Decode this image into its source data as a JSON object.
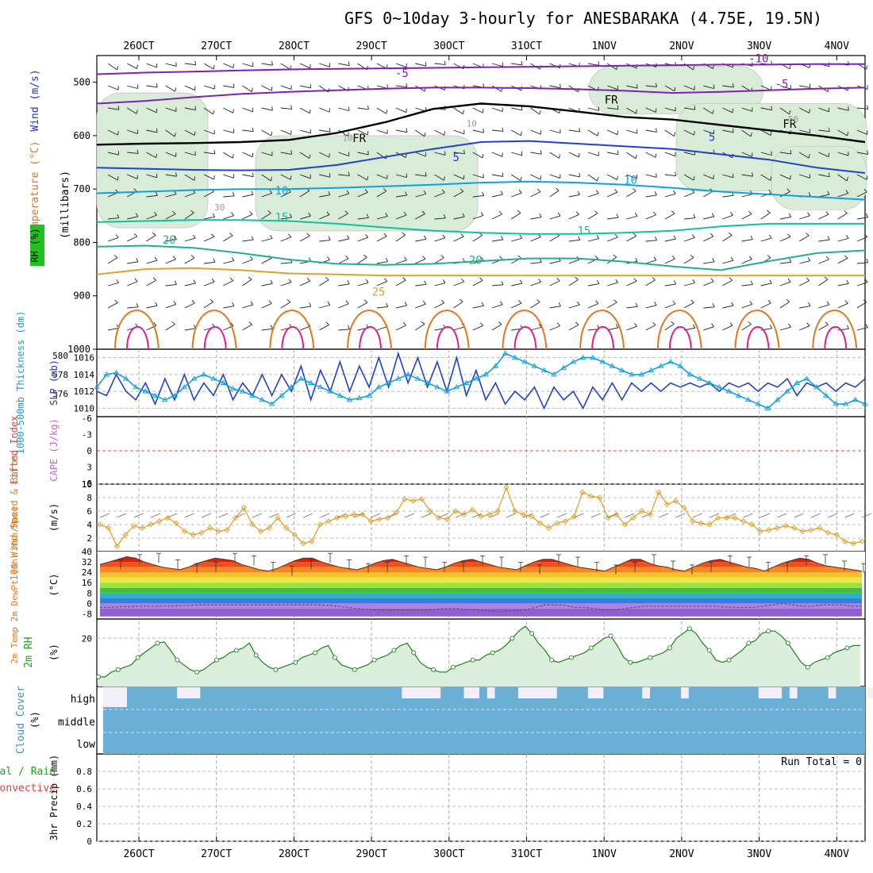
{
  "title": "GFS 0~10day 3-hourly for ANESBARAKA (4.75E, 19.5N)",
  "date_ticks": [
    "26OCT",
    "27OCT",
    "28OCT",
    "29OCT",
    "30OCT",
    "31OCT",
    "1NOV",
    "2NOV",
    "3NOV",
    "4NOV"
  ],
  "colors": {
    "purple": "#8020b0",
    "black": "#000000",
    "blue": "#2040d0",
    "lightblue": "#10a0e0",
    "teal": "#10c0a0",
    "tealgreen": "#20b090",
    "orange": "#e0a030",
    "darkorange": "#e07820",
    "magenta": "#e0208a",
    "rh_fill": "#d8ecd8",
    "cloud": "#6baed6",
    "cloud_bg": "#f3eef8"
  },
  "chart_data": [
    {
      "type": "line",
      "panel": "upper-air",
      "labels": {
        "wind": "Wind (m/s)",
        "temperature": "Temperature (°C)",
        "rh": "RH (%)",
        "yunit": "(millibars)"
      },
      "ylim": [
        1000,
        450
      ],
      "y_ticks": [
        500,
        600,
        700,
        800,
        900,
        1000
      ],
      "isotherm_labels": [
        {
          "text": "-10",
          "color": "purple",
          "x_day": 7.5,
          "p": 463
        },
        {
          "text": "-5",
          "color": "purple",
          "x_day": 2.9,
          "p": 490
        },
        {
          "text": "-5",
          "color": "purple",
          "x_day": 7.8,
          "p": 510
        },
        {
          "text": "FR",
          "color": "black",
          "x_day": 2.35,
          "p": 612
        },
        {
          "text": "FR",
          "color": "black",
          "x_day": 5.6,
          "p": 540
        },
        {
          "text": "FR",
          "color": "black",
          "x_day": 7.9,
          "p": 585
        },
        {
          "text": "5",
          "color": "blue",
          "x_day": 3.6,
          "p": 648
        },
        {
          "text": "5",
          "color": "blue",
          "x_day": 6.9,
          "p": 610
        },
        {
          "text": "10",
          "color": "lightblue",
          "x_day": 1.35,
          "p": 710
        },
        {
          "text": "10",
          "color": "lightblue",
          "x_day": 5.85,
          "p": 690
        },
        {
          "text": "15",
          "color": "teal",
          "x_day": 1.35,
          "p": 760
        },
        {
          "text": "15",
          "color": "teal",
          "x_day": 5.25,
          "p": 785
        },
        {
          "text": "20",
          "color": "tealgreen",
          "x_day": -0.1,
          "p": 802
        },
        {
          "text": "20",
          "color": "tealgreen",
          "x_day": 3.85,
          "p": 840
        },
        {
          "text": "25",
          "color": "orange",
          "x_day": 2.6,
          "p": 900
        },
        {
          "text": "10",
          "color": "gray",
          "x_day": 3.8,
          "p": 583
        },
        {
          "text": "10",
          "color": "gray",
          "x_day": 2.2,
          "p": 610
        },
        {
          "text": "30",
          "color": "gray",
          "x_day": 0.55,
          "p": 740
        },
        {
          "text": "50",
          "color": "gray",
          "x_day": 7.95,
          "p": 575
        }
      ],
      "series": [
        {
          "name": "-10",
          "color": "purple",
          "values": [
            485,
            482,
            480,
            478,
            476,
            475,
            474,
            473,
            472,
            471,
            470,
            469,
            468,
            467,
            467,
            466,
            466
          ]
        },
        {
          "name": "-5",
          "color": "purple",
          "values": [
            540,
            535,
            528,
            522,
            518,
            515,
            512,
            510,
            510,
            511,
            513,
            516,
            520,
            518,
            515,
            512,
            510
          ]
        },
        {
          "name": "FR",
          "color": "black",
          "values": [
            617,
            615,
            614,
            612,
            608,
            595,
            575,
            550,
            540,
            545,
            555,
            565,
            570,
            580,
            590,
            600,
            612
          ]
        },
        {
          "name": "5",
          "color": "blue",
          "values": [
            660,
            662,
            664,
            665,
            664,
            655,
            640,
            625,
            612,
            610,
            615,
            620,
            625,
            635,
            645,
            660,
            670
          ]
        },
        {
          "name": "10",
          "color": "lightblue",
          "values": [
            708,
            705,
            702,
            700,
            700,
            698,
            695,
            692,
            688,
            686,
            688,
            692,
            698,
            705,
            710,
            715,
            720
          ]
        },
        {
          "name": "15",
          "color": "teal",
          "values": [
            762,
            760,
            758,
            758,
            760,
            765,
            772,
            778,
            782,
            784,
            784,
            782,
            778,
            770,
            765,
            765,
            765
          ]
        },
        {
          "name": "20",
          "color": "tealgreen",
          "values": [
            808,
            806,
            810,
            820,
            832,
            840,
            842,
            840,
            835,
            830,
            830,
            836,
            845,
            852,
            835,
            820,
            815
          ]
        },
        {
          "name": "25",
          "color": "orange",
          "values": [
            860,
            850,
            848,
            852,
            858,
            860,
            862,
            862,
            862,
            862,
            862,
            862,
            862,
            862,
            862,
            862,
            862
          ]
        }
      ]
    },
    {
      "type": "line",
      "panel": "sfc-pressure",
      "labels": {
        "left": "1000-500mb Thickness (dm)",
        "right": "SLP (mb)"
      },
      "ylim_right": [
        1009,
        1017
      ],
      "y_ticks_left": [
        576,
        578,
        580
      ],
      "y_ticks_right": [
        1010,
        1012,
        1014,
        1016
      ],
      "series": [
        {
          "name": "SLP",
          "color": "blue",
          "values": [
            1012.0,
            1011.5,
            1014,
            1012,
            1011,
            1013,
            1010.5,
            1013.5,
            1011,
            1014,
            1011,
            1013,
            1011.5,
            1014,
            1011,
            1013,
            1011.5,
            1014,
            1011.5,
            1014,
            1012,
            1015,
            1011,
            1014.5,
            1012,
            1015.5,
            1012,
            1015,
            1012.5,
            1016,
            1012.5,
            1016.5,
            1013,
            1016,
            1012.5,
            1015.5,
            1012,
            1016,
            1011.5,
            1014.5,
            1011,
            1013,
            1010.5,
            1012,
            1011,
            1012.5,
            1010,
            1012.5,
            1011,
            1012,
            1010,
            1012.5,
            1011,
            1013,
            1011,
            1013,
            1012,
            1013,
            1012,
            1013,
            1012.5,
            1013,
            1012.5,
            1013,
            1012,
            1013,
            1012.5,
            1013,
            1012,
            1013,
            1012.5,
            1013.5,
            1011.5,
            1013,
            1012.5,
            1013,
            1012,
            1013,
            1012.5,
            1013.5
          ]
        },
        {
          "name": "Thickness",
          "color": "lightblue",
          "values": [
            1012.5,
            1014,
            1014.2,
            1013.5,
            1012.5,
            1012,
            1011.5,
            1011,
            1011.5,
            1012.5,
            1013.5,
            1014,
            1013.5,
            1013,
            1012.3,
            1012,
            1011.5,
            1011,
            1010.5,
            1011.5,
            1012.5,
            1013.5,
            1013,
            1012.5,
            1012,
            1011.5,
            1011,
            1011.2,
            1011.5,
            1012.5,
            1013,
            1013.5,
            1014,
            1013.5,
            1013,
            1012.5,
            1012,
            1012.5,
            1013,
            1013.5,
            1014,
            1015,
            1016.5,
            1016,
            1015.5,
            1015,
            1014.5,
            1014,
            1014.8,
            1015.5,
            1016,
            1016,
            1015.5,
            1015,
            1014.5,
            1014,
            1014,
            1014.5,
            1015,
            1015.5,
            1015,
            1014,
            1013.5,
            1013,
            1012.5,
            1012,
            1011.5,
            1011,
            1010.5,
            1010,
            1011,
            1012,
            1013,
            1013.5,
            1012.5,
            1011.5,
            1010.5,
            1010.5,
            1011,
            1010.5
          ]
        }
      ]
    },
    {
      "type": "line",
      "panel": "stability",
      "labels": {
        "left": "Lifted Index",
        "right": "CAPE (J/kg)"
      },
      "y_ticks": [
        "-6",
        "-3",
        "0",
        "3",
        "6"
      ],
      "cape_label": "10",
      "cape_values": [
        0,
        0,
        0,
        0,
        0
      ]
    },
    {
      "type": "line",
      "panel": "10m-wind",
      "labels": {
        "left": "10m Wind Speed & Barbs",
        "unit": "(m/s)"
      },
      "ylim": [
        0,
        10
      ],
      "y_ticks": [
        "2",
        "4",
        "6",
        "8",
        "10"
      ],
      "series": [
        {
          "name": "Speed",
          "color": "orange",
          "values": [
            4,
            3.5,
            0.8,
            2.5,
            3.8,
            3.5,
            4,
            4.5,
            5,
            4.2,
            3,
            2.5,
            2.8,
            3.5,
            3,
            3.2,
            5,
            6.5,
            4,
            3,
            3.5,
            5,
            3.5,
            2.5,
            1.2,
            1.5,
            4,
            4.5,
            5,
            5.2,
            5.5,
            5.5,
            4.5,
            4.8,
            5,
            5.8,
            7.8,
            7.5,
            7.8,
            6,
            5,
            4.8,
            6,
            5.5,
            6.2,
            5.2,
            5.5,
            6,
            9.5,
            6,
            5.5,
            5.2,
            4.2,
            3.5,
            4.2,
            4.5,
            5.2,
            8.8,
            8.2,
            8,
            5,
            5.5,
            4,
            5,
            6,
            5.5,
            8.8,
            7,
            7.5,
            6.5,
            4.5,
            4.2,
            4,
            5,
            5,
            5,
            4.5,
            4,
            3,
            3.2,
            3.5,
            3.8,
            3.5,
            3,
            3.2,
            3.5,
            2.8,
            2.5,
            1.5,
            1.2,
            1.5
          ]
        }
      ]
    },
    {
      "type": "area",
      "panel": "2m-temp",
      "labels": {
        "left": "2m Temp 2m DewPt (6hr Min/Max)",
        "unit": "(°C)"
      },
      "y_ticks": [
        "-8",
        "0",
        "8",
        "16",
        "24",
        "32",
        "40"
      ],
      "series": [
        {
          "name": "Temp",
          "color": "orange",
          "values": [
            30,
            32,
            34,
            36,
            35,
            32,
            30,
            28,
            27,
            26,
            28,
            31,
            33,
            35,
            34,
            33,
            30,
            28,
            26,
            25,
            27,
            30,
            33,
            35,
            35,
            32,
            30,
            28,
            27,
            26,
            28,
            31,
            33,
            34,
            32,
            30,
            28,
            27,
            26,
            28,
            31,
            33,
            34,
            32,
            30,
            28,
            27,
            26,
            29,
            32,
            34,
            34,
            32,
            30,
            28,
            27,
            26,
            25,
            28,
            31,
            34,
            34,
            31,
            29,
            28,
            26,
            25,
            28,
            31,
            33,
            34,
            32,
            30,
            28,
            27,
            25,
            28,
            31,
            33,
            35,
            34,
            31,
            29,
            28,
            27,
            26,
            25
          ]
        },
        {
          "name": "DewPt",
          "color": "gray",
          "values": [
            -3,
            -3,
            -2.5,
            -2.5,
            -2,
            -2,
            -2,
            -2,
            -1.5,
            -1.5,
            -1,
            -1,
            -1,
            -1,
            -1,
            -1,
            -1,
            -1,
            -1,
            -1,
            -1,
            -1,
            -1,
            -1.5,
            -2,
            -3,
            -4,
            -4.5,
            -5,
            -5,
            -5,
            -5,
            -5,
            -5,
            -4.5,
            -4,
            -4,
            -4.5,
            -5,
            -5.5,
            -6,
            -6,
            -5.5,
            -5,
            -3,
            -1,
            -1,
            -1.5,
            -3,
            -3,
            -4,
            -5,
            -5,
            -4,
            -3,
            -2,
            -2,
            -2,
            -2,
            -2,
            -2,
            -2,
            -2,
            -2.5,
            -3,
            -3,
            -3,
            -2,
            -1,
            0,
            -1,
            -2,
            -2,
            -1,
            -1,
            -1,
            -2,
            -2
          ]
        }
      ]
    },
    {
      "type": "area",
      "panel": "2m-rh",
      "labels": {
        "left": "2m RH",
        "unit": "(%)"
      },
      "ylim": [
        0,
        28
      ],
      "y_ticks": [
        "20"
      ],
      "series": [
        {
          "name": "RH",
          "color": "green",
          "values": [
            4,
            4,
            6,
            7,
            8,
            9,
            12,
            14,
            16,
            18,
            18.5,
            15,
            11,
            9,
            7,
            6,
            7,
            9,
            11,
            12,
            14,
            15,
            16,
            18,
            13,
            10,
            8,
            7,
            8,
            9,
            10,
            12,
            13,
            14,
            16,
            17,
            12,
            9,
            8,
            7,
            8,
            9,
            11,
            12,
            13,
            15,
            17,
            18,
            14,
            10,
            8,
            7,
            6,
            6,
            8,
            9,
            10,
            11,
            11,
            13,
            14,
            15,
            17,
            20,
            23,
            25,
            22,
            18,
            15,
            11,
            10,
            11,
            12,
            13,
            14,
            16,
            18,
            20,
            21,
            17,
            12,
            10,
            10,
            11,
            12,
            13,
            14,
            16,
            20,
            22,
            24,
            22,
            18,
            15,
            11,
            10,
            11,
            13,
            15,
            18,
            19,
            22,
            23,
            23,
            21,
            18,
            14,
            10,
            8,
            10,
            11,
            12,
            14,
            15,
            16,
            17,
            17
          ]
        }
      ]
    },
    {
      "type": "area",
      "panel": "cloud-cover",
      "labels": {
        "left": "Cloud Cover",
        "unit": "(%)"
      },
      "levels": [
        "high",
        "middle",
        "low"
      ],
      "high_gap_days": [
        [
          0,
          0.3
        ],
        [
          2.9,
          3.4
        ],
        [
          3.7,
          3.9
        ],
        [
          4.0,
          4.1
        ],
        [
          4.4,
          4.9
        ],
        [
          5.3,
          5.5
        ],
        [
          6.0,
          6.1
        ],
        [
          6.5,
          6.6
        ],
        [
          7.5,
          7.8
        ],
        [
          7.9,
          8.0
        ],
        [
          8.4,
          8.5
        ],
        [
          8.9,
          9.1
        ]
      ]
    },
    {
      "type": "bar",
      "panel": "precip",
      "labels": {
        "left": "3hr Precip (mm)",
        "left2": "Total / Rain",
        "left3": "Convective",
        "run_total": "Run Total = 0"
      },
      "ylim": [
        0,
        1
      ],
      "y_ticks": [
        "0",
        "0.2",
        "0.4",
        "0.6",
        "0.8"
      ],
      "values": []
    }
  ]
}
